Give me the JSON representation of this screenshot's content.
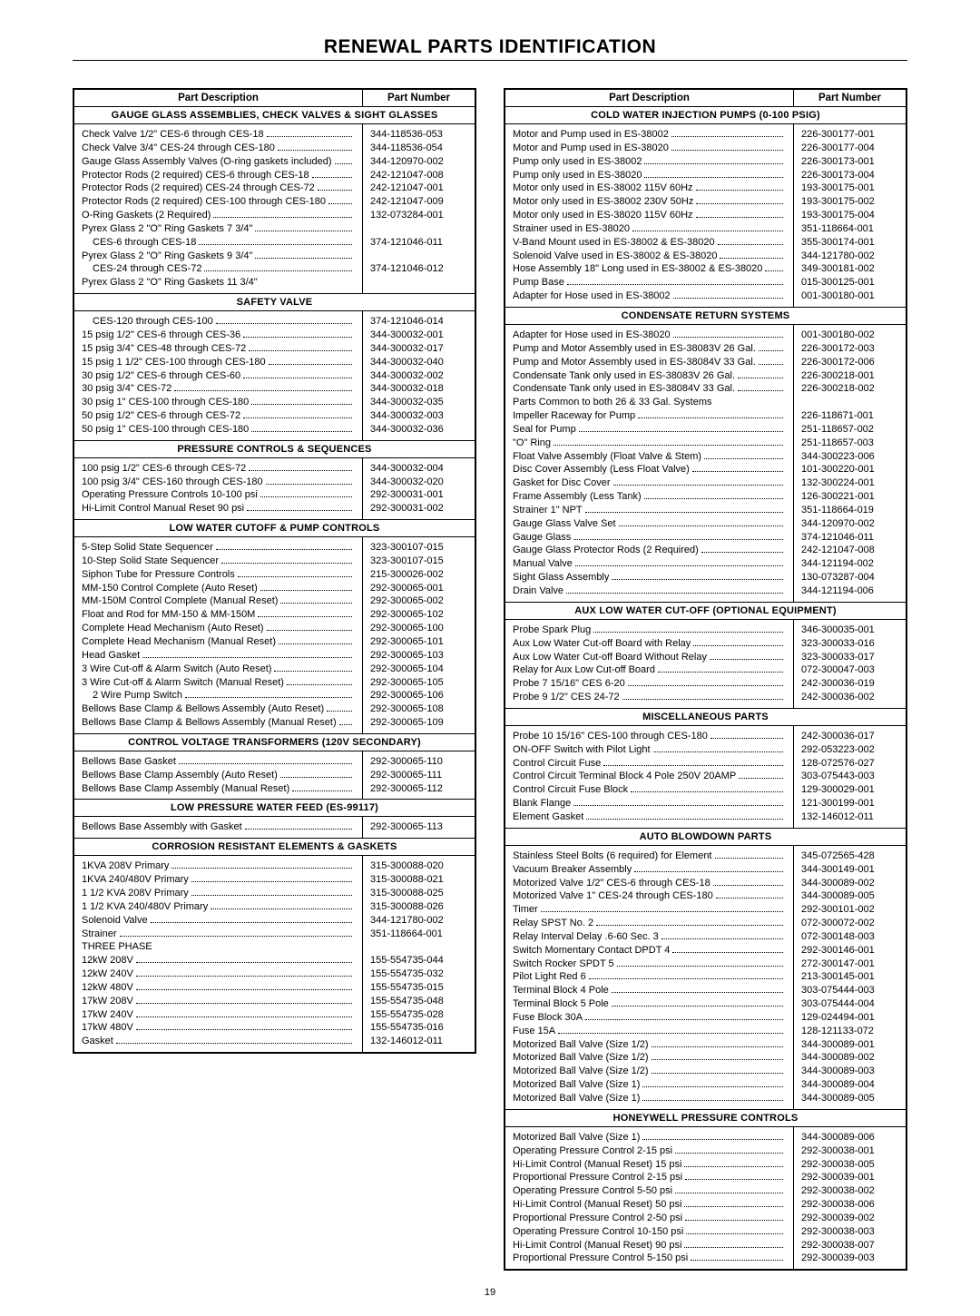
{
  "title": "RENEWAL PARTS IDENTIFICATION",
  "page_number": "19",
  "header_desc": "Part Description",
  "header_pn": "Part Number",
  "left_sections": [
    {
      "title": "Gauge Glass Assemblies, Check Valves & Sight Glasses",
      "rows": [
        {
          "d": "Check Valve 1/2\" CES-6 through CES-18",
          "p": "344-118536-053"
        },
        {
          "d": "Check Valve 3/4\" CES-24 through CES-180",
          "p": "344-118536-054"
        },
        {
          "d": "Gauge Glass Assembly Valves (O-ring gaskets included)",
          "p": "344-120970-002"
        },
        {
          "d": "Protector Rods (2 required) CES-6 through CES-18",
          "p": "242-121047-008"
        },
        {
          "d": "Protector Rods (2 required) CES-24 through CES-72",
          "p": "242-121047-001"
        },
        {
          "d": "Protector Rods (2 required) CES-100 through CES-180",
          "p": "242-121047-009"
        },
        {
          "d": "O-Ring Gaskets (2 Required)",
          "p": "132-073284-001"
        },
        {
          "d": "Pyrex Glass 2 \"O\" Ring Gaskets 7 3/4\"",
          "p": ""
        },
        {
          "d": "CES-6 through CES-18",
          "p": "374-121046-011",
          "indent": true
        },
        {
          "d": "Pyrex Glass 2 \"O\" Ring Gaskets 9 3/4\"",
          "p": ""
        },
        {
          "d": "CES-24 through CES-72",
          "p": "374-121046-012",
          "indent": true
        },
        {
          "d": "Pyrex Glass 2 \"O\" Ring Gaskets 11 3/4\"",
          "p": "",
          "nodots": true
        }
      ]
    },
    {
      "title": "Safety Valve",
      "rows": [
        {
          "d": "CES-120 through CES-100",
          "p": "374-121046-014",
          "indent": true
        },
        {
          "d": "15 psig 1/2\" CES-6 through CES-36",
          "p": "344-300032-001"
        },
        {
          "d": "15 psig 3/4\" CES-48 through CES-72",
          "p": "344-300032-017"
        },
        {
          "d": "15 psig 1 1/2\" CES-100 through CES-180",
          "p": "344-300032-040"
        },
        {
          "d": "30 psig 1/2\" CES-6 through CES-60",
          "p": "344-300032-002"
        },
        {
          "d": "30 psig 3/4\" CES-72",
          "p": "344-300032-018"
        },
        {
          "d": "30 psig 1\" CES-100 through CES-180",
          "p": "344-300032-035"
        },
        {
          "d": "50 psig 1/2\" CES-6 through CES-72",
          "p": "344-300032-003"
        },
        {
          "d": "50 psig 1\" CES-100 through CES-180",
          "p": "344-300032-036"
        }
      ]
    },
    {
      "title": "Pressure Controls & Sequences",
      "rows": [
        {
          "d": "100 psig 1/2\" CES-6 through CES-72",
          "p": "344-300032-004"
        },
        {
          "d": "100 psig 3/4\" CES-160 through CES-180",
          "p": "344-300032-020"
        },
        {
          "d": "Operating Pressure Controls 10-100 psi",
          "p": "292-300031-001"
        },
        {
          "d": "Hi-Limit Control Manual Reset 90 psi",
          "p": "292-300031-002"
        }
      ]
    },
    {
      "title": "Low Water Cutoff & Pump Controls",
      "rows": [
        {
          "d": "5-Step Solid State Sequencer",
          "p": "323-300107-015"
        },
        {
          "d": "10-Step Solid State Sequencer",
          "p": "323-300107-015"
        },
        {
          "d": "Siphon Tube for Pressure Controls",
          "p": "215-300026-002"
        },
        {
          "d": "MM-150 Control Complete (Auto Reset)",
          "p": "292-300065-001"
        },
        {
          "d": "MM-150M Control Complete (Manual Reset)",
          "p": "292-300065-002"
        },
        {
          "d": "Float and Rod for MM-150 & MM-150M",
          "p": "292-300065-102"
        },
        {
          "d": "Complete Head Mechanism (Auto Reset)",
          "p": "292-300065-100"
        },
        {
          "d": "Complete Head Mechanism (Manual Reset)",
          "p": "292-300065-101"
        },
        {
          "d": "Head Gasket",
          "p": "292-300065-103"
        },
        {
          "d": "3 Wire Cut-off & Alarm Switch (Auto Reset)",
          "p": "292-300065-104"
        },
        {
          "d": "3 Wire Cut-off & Alarm Switch (Manual Reset)",
          "p": "292-300065-105"
        },
        {
          "d": "2 Wire Pump Switch",
          "p": "292-300065-106",
          "indent": true
        },
        {
          "d": "Bellows Base Clamp & Bellows Assembly (Auto Reset)",
          "p": "292-300065-108"
        },
        {
          "d": "Bellows Base Clamp & Bellows Assembly (Manual Reset)",
          "p": "292-300065-109"
        }
      ]
    },
    {
      "title": "Control Voltage Transformers (120V Secondary)",
      "rows": [
        {
          "d": "Bellows Base Gasket",
          "p": "292-300065-110"
        },
        {
          "d": "Bellows Base Clamp Assembly (Auto Reset)",
          "p": "292-300065-111"
        },
        {
          "d": "Bellows Base Clamp Assembly (Manual Reset)",
          "p": "292-300065-112"
        }
      ]
    },
    {
      "title": "Low Pressure Water Feed (ES-99117)",
      "rows": [
        {
          "d": "Bellows Base Assembly with Gasket",
          "p": "292-300065-113"
        }
      ]
    },
    {
      "title": "Corrosion Resistant Elements & Gaskets",
      "rows": [
        {
          "d": "1KVA 208V Primary",
          "p": "315-300088-020"
        },
        {
          "d": "1KVA 240/480V Primary",
          "p": "315-300088-021"
        },
        {
          "d": "1 1/2 KVA 208V Primary",
          "p": "315-300088-025"
        },
        {
          "d": "1 1/2 KVA 240/480V Primary",
          "p": "315-300088-026"
        },
        {
          "d": "Solenoid Valve",
          "p": "344-121780-002"
        },
        {
          "d": "Strainer",
          "p": "351-118664-001"
        },
        {
          "d": "THREE PHASE",
          "p": "",
          "nodots": true
        },
        {
          "d": "12kW 208V",
          "p": "155-554735-044"
        },
        {
          "d": "12kW 240V",
          "p": "155-554735-032"
        },
        {
          "d": "12kW 480V",
          "p": "155-554735-015"
        },
        {
          "d": "17kW 208V",
          "p": "155-554735-048"
        },
        {
          "d": "17kW 240V",
          "p": "155-554735-028"
        },
        {
          "d": "17kW 480V",
          "p": "155-554735-016"
        },
        {
          "d": "Gasket",
          "p": "132-146012-011"
        }
      ]
    }
  ],
  "right_sections": [
    {
      "title": "Cold Water Injection Pumps (0-100 PSIG)",
      "rows": [
        {
          "d": "Motor and Pump used in ES-38002",
          "p": "226-300177-001"
        },
        {
          "d": "Motor and Pump used in ES-38020",
          "p": "226-300177-004"
        },
        {
          "d": "Pump only used in ES-38002",
          "p": "226-300173-001"
        },
        {
          "d": "Pump only used in ES-38020",
          "p": "226-300173-004"
        },
        {
          "d": "Motor only used in ES-38002 115V 60Hz",
          "p": "193-300175-001"
        },
        {
          "d": "Motor only used in ES-38002 230V 50Hz",
          "p": "193-300175-002"
        },
        {
          "d": "Motor only used in ES-38020 115V 60Hz",
          "p": "193-300175-004"
        },
        {
          "d": "Strainer used in ES-38020",
          "p": "351-118664-001"
        },
        {
          "d": "V-Band Mount used in ES-38002 & ES-38020",
          "p": "355-300174-001"
        },
        {
          "d": "Solenoid Valve used in ES-38002 & ES-38020",
          "p": "344-121780-002"
        },
        {
          "d": "Hose Assembly 18\" Long used in ES-38002 & ES-38020",
          "p": "349-300181-002"
        },
        {
          "d": "Pump Base",
          "p": "015-300125-001"
        },
        {
          "d": "Adapter for Hose used in ES-38002",
          "p": "001-300180-001"
        }
      ]
    },
    {
      "title": "Condensate Return Systems",
      "rows": [
        {
          "d": "Adapter for Hose used in ES-38020",
          "p": "001-300180-002"
        },
        {
          "d": "Pump and Motor Assembly used in ES-38083V 26 Gal.",
          "p": "226-300172-003"
        },
        {
          "d": "Pump and Motor Assembly used in ES-38084V 33 Gal.",
          "p": "226-300172-006"
        },
        {
          "d": "Condensate Tank only used in ES-38083V 26 Gal.",
          "p": "226-300218-001"
        },
        {
          "d": "Condensate Tank only used in ES-38084V 33 Gal.",
          "p": "226-300218-002"
        },
        {
          "d": "Parts Common to both 26 & 33 Gal. Systems",
          "p": "",
          "nodots": true
        },
        {
          "d": "Impeller Raceway for Pump",
          "p": "226-118671-001"
        },
        {
          "d": "Seal for Pump",
          "p": "251-118657-002"
        },
        {
          "d": "\"O\" Ring",
          "p": "251-118657-003"
        },
        {
          "d": "Float Valve Assembly (Float Valve & Stem)",
          "p": "344-300223-006"
        },
        {
          "d": "Disc Cover Assembly (Less Float Valve)",
          "p": "101-300220-001"
        },
        {
          "d": "Gasket for Disc Cover",
          "p": "132-300224-001"
        },
        {
          "d": "Frame Assembly (Less Tank)",
          "p": "126-300221-001"
        },
        {
          "d": "Strainer 1\" NPT",
          "p": "351-118664-019"
        },
        {
          "d": "Gauge Glass Valve Set",
          "p": "344-120970-002"
        },
        {
          "d": "Gauge Glass",
          "p": "374-121046-011"
        },
        {
          "d": "Gauge Glass Protector Rods (2 Required)",
          "p": "242-121047-008"
        },
        {
          "d": "Manual Valve",
          "p": "344-121194-002"
        },
        {
          "d": "Sight Glass Assembly",
          "p": "130-073287-004"
        },
        {
          "d": "Drain Valve",
          "p": "344-121194-006"
        }
      ]
    },
    {
      "title": "Aux Low Water Cut-Off (Optional Equipment)",
      "rows": [
        {
          "d": "Probe Spark Plug",
          "p": "346-300035-001"
        },
        {
          "d": "Aux Low Water Cut-off Board with Relay",
          "p": "323-300033-016"
        },
        {
          "d": "Aux Low Water Cut-off Board Without Relay",
          "p": "323-300033-017"
        },
        {
          "d": "Relay for Aux Low Cut-off Board",
          "p": "072-300047-003"
        },
        {
          "d": "Probe 7 15/16\" CES 6-20",
          "p": "242-300036-019"
        },
        {
          "d": "Probe 9 1/2\" CES 24-72",
          "p": "242-300036-002"
        }
      ]
    },
    {
      "title": "Miscellaneous Parts",
      "rows": [
        {
          "d": "Probe 10 15/16\" CES-100 through CES-180",
          "p": "242-300036-017"
        },
        {
          "d": "ON-OFF Switch with Pilot Light",
          "p": "292-053223-002"
        },
        {
          "d": "Control Circuit Fuse",
          "p": "128-072576-027"
        },
        {
          "d": "Control Circuit Terminal Block 4 Pole 250V 20AMP",
          "p": "303-075443-003"
        },
        {
          "d": "Control Circuit Fuse Block",
          "p": "129-300029-001"
        },
        {
          "d": "Blank Flange",
          "p": "121-300199-001"
        },
        {
          "d": "Element Gasket",
          "p": "132-146012-011"
        }
      ]
    },
    {
      "title": "Auto Blowdown Parts",
      "rows": [
        {
          "d": "Stainless Steel Bolts (6 required) for Element",
          "p": "345-072565-428"
        },
        {
          "d": "Vacuum Breaker Assembly",
          "p": "344-300149-001"
        },
        {
          "d": "Motorized Valve 1/2\" CES-6 through CES-18",
          "p": "344-300089-002"
        },
        {
          "d": "Motorized Valve 1\" CES-24 through CES-180",
          "p": "344-300089-005"
        },
        {
          "d": "Timer",
          "p": "292-300101-002"
        },
        {
          "d": "Relay SPST No. 2",
          "p": "072-300072-002"
        },
        {
          "d": "Relay Interval Delay .6-60 Sec. 3",
          "p": "072-300148-003"
        },
        {
          "d": "Switch Momentary Contact DPDT 4",
          "p": "292-300146-001"
        },
        {
          "d": "Switch Rocker SPDT 5",
          "p": "272-300147-001"
        },
        {
          "d": "Pilot Light Red 6",
          "p": "213-300145-001"
        },
        {
          "d": "Terminal Block 4 Pole",
          "p": "303-075444-003"
        },
        {
          "d": "Terminal Block 5 Pole",
          "p": "303-075444-004"
        },
        {
          "d": "Fuse Block 30A",
          "p": "129-024494-001"
        },
        {
          "d": "Fuse 15A",
          "p": "128-121133-072"
        },
        {
          "d": "Motorized Ball Valve (Size 1/2)",
          "p": "344-300089-001"
        },
        {
          "d": "Motorized Ball Valve (Size 1/2)",
          "p": "344-300089-002"
        },
        {
          "d": "Motorized Ball Valve (Size 1/2)",
          "p": "344-300089-003"
        },
        {
          "d": "Motorized Ball Valve (Size 1)",
          "p": "344-300089-004"
        },
        {
          "d": "Motorized Ball Valve (Size 1)",
          "p": "344-300089-005"
        }
      ]
    },
    {
      "title": "Honeywell Pressure Controls",
      "rows": [
        {
          "d": "Motorized Ball Valve (Size 1)",
          "p": "344-300089-006"
        },
        {
          "d": "Operating Pressure Control 2-15 psi",
          "p": "292-300038-001"
        },
        {
          "d": "Hi-Limit Control (Manual Reset) 15 psi",
          "p": "292-300038-005"
        },
        {
          "d": "Proportional Pressure Control 2-15 psi",
          "p": "292-300039-001"
        },
        {
          "d": "Operating Pressure Control 5-50 psi",
          "p": "292-300038-002"
        },
        {
          "d": "Hi-Limit Control (Manual Reset) 50 psi",
          "p": "292-300038-006"
        },
        {
          "d": "Proportional Pressure Control 2-50 psi",
          "p": "292-300039-002"
        },
        {
          "d": "Operating Pressure Control 10-150 psi",
          "p": "292-300038-003"
        },
        {
          "d": "Hi-Limit Control (Manual Reset) 90 psi",
          "p": "292-300038-007"
        },
        {
          "d": "Proportional Pressure Control 5-150 psi",
          "p": "292-300039-003"
        }
      ]
    }
  ]
}
